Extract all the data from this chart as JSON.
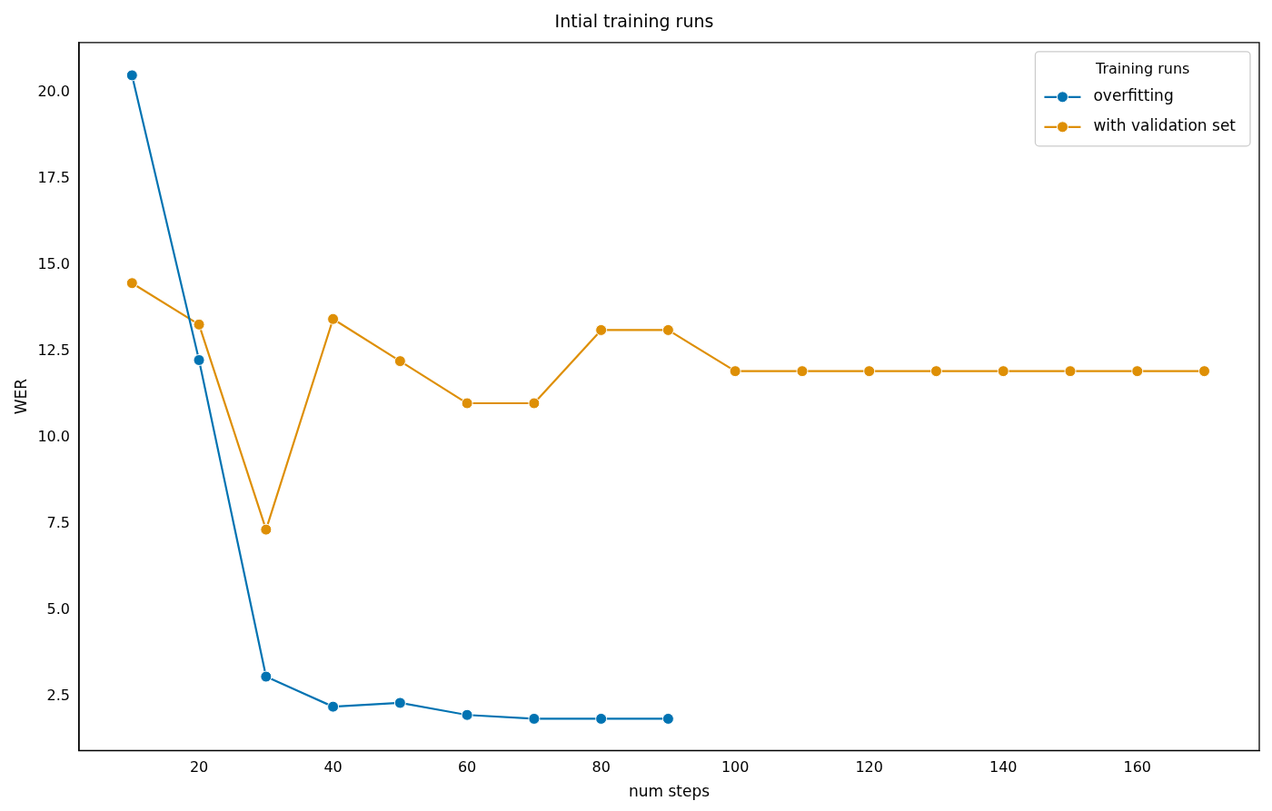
{
  "chart_data": {
    "type": "line",
    "title": "Intial training runs",
    "xlabel": "num steps",
    "ylabel": "WER",
    "legend_title": "Training runs",
    "legend": "top right",
    "grid": false,
    "marker": "circle",
    "line_style": "solid",
    "xlim": [
      2.1,
      178.2
    ],
    "xticks": [
      20,
      40,
      60,
      80,
      100,
      120,
      140,
      160
    ],
    "ylim": [
      0.93,
      21.44
    ],
    "yticks": [
      {
        "value": 2.5,
        "label": "2.5"
      },
      {
        "value": 5,
        "label": "5.0"
      },
      {
        "value": 7.5,
        "label": "7.5"
      },
      {
        "value": 10,
        "label": "10.0"
      },
      {
        "value": 12.5,
        "label": "12.5"
      },
      {
        "value": 15,
        "label": "15.0"
      },
      {
        "value": 17.5,
        "label": "17.5"
      },
      {
        "value": 20,
        "label": "20.0"
      }
    ],
    "series": [
      {
        "name": "overfitting",
        "color": "#0173b2",
        "x": [
          10,
          20,
          30,
          40,
          50,
          60,
          70,
          80,
          90
        ],
        "values": [
          20.49,
          12.24,
          3.07,
          2.2,
          2.31,
          1.96,
          1.85,
          1.85,
          1.85
        ]
      },
      {
        "name": "with validation set",
        "color": "#de8f05",
        "x": [
          10,
          20,
          30,
          40,
          50,
          60,
          70,
          80,
          90,
          100,
          110,
          120,
          130,
          140,
          150,
          160,
          170
        ],
        "values": [
          14.47,
          13.27,
          7.33,
          13.43,
          12.21,
          10.99,
          10.99,
          13.11,
          13.11,
          11.92,
          11.92,
          11.92,
          11.92,
          11.92,
          11.92,
          11.92,
          11.92
        ]
      }
    ]
  }
}
